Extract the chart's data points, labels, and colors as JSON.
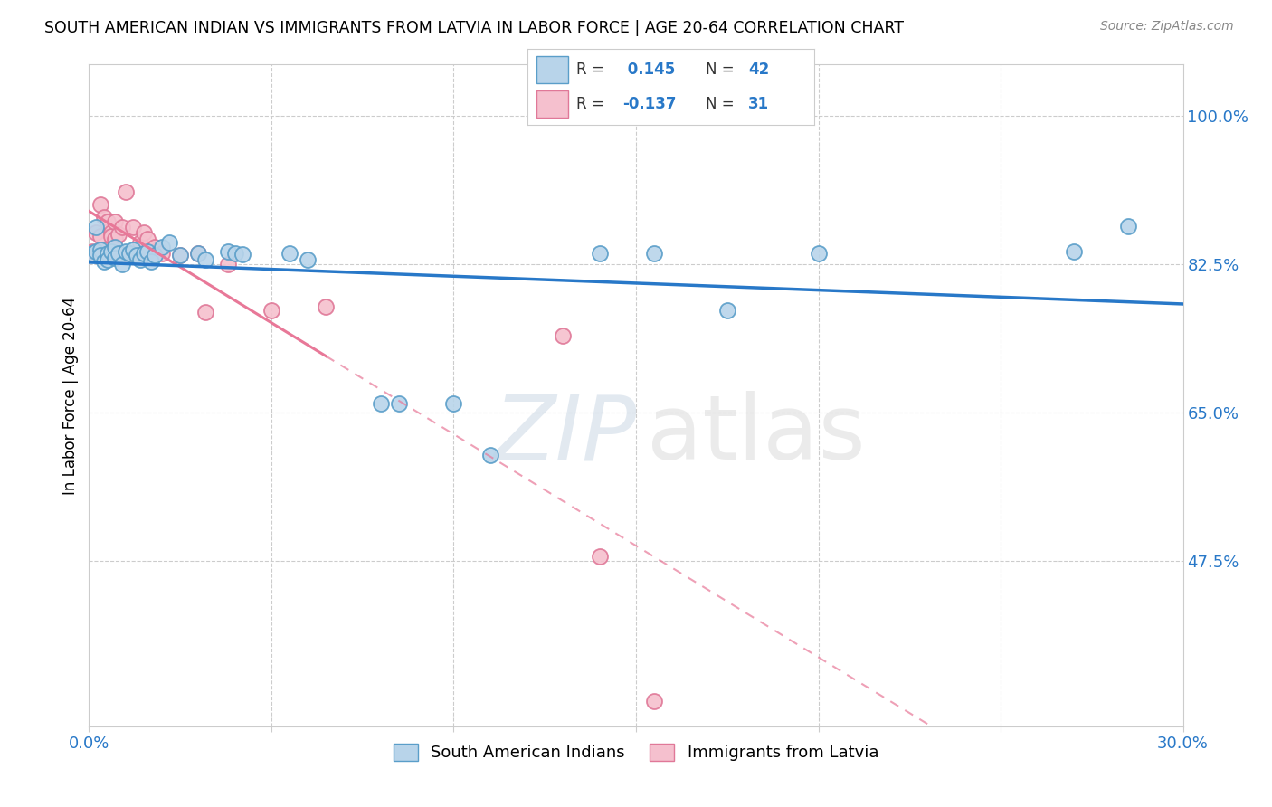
{
  "title": "SOUTH AMERICAN INDIAN VS IMMIGRANTS FROM LATVIA IN LABOR FORCE | AGE 20-64 CORRELATION CHART",
  "source": "Source: ZipAtlas.com",
  "ylabel": "In Labor Force | Age 20-64",
  "xlim": [
    0.0,
    0.3
  ],
  "ylim": [
    0.28,
    1.06
  ],
  "ytick_vals": [
    0.3,
    0.475,
    0.65,
    0.825,
    1.0
  ],
  "ytick_labels": [
    "",
    "47.5%",
    "65.0%",
    "82.5%",
    "100.0%"
  ],
  "xtick_positions": [
    0.0,
    0.05,
    0.1,
    0.15,
    0.2,
    0.25,
    0.3
  ],
  "xtick_labels": [
    "0.0%",
    "",
    "",
    "",
    "",
    "",
    "30.0%"
  ],
  "blue_R": 0.145,
  "blue_N": 42,
  "pink_R": -0.137,
  "pink_N": 31,
  "blue_color": "#b8d4ea",
  "blue_edge": "#5a9ec9",
  "pink_color": "#f5c0ce",
  "pink_edge": "#e07898",
  "blue_line_color": "#2878c8",
  "pink_line_color": "#e87898",
  "blue_x": [
    0.001,
    0.002,
    0.002,
    0.003,
    0.003,
    0.004,
    0.005,
    0.005,
    0.006,
    0.007,
    0.007,
    0.008,
    0.009,
    0.01,
    0.011,
    0.012,
    0.013,
    0.014,
    0.015,
    0.016,
    0.017,
    0.018,
    0.02,
    0.022,
    0.025,
    0.03,
    0.032,
    0.038,
    0.04,
    0.042,
    0.055,
    0.06,
    0.08,
    0.085,
    0.1,
    0.11,
    0.14,
    0.155,
    0.175,
    0.2,
    0.27,
    0.285
  ],
  "blue_y": [
    0.838,
    0.84,
    0.868,
    0.842,
    0.835,
    0.828,
    0.838,
    0.83,
    0.84,
    0.845,
    0.832,
    0.838,
    0.825,
    0.84,
    0.838,
    0.842,
    0.835,
    0.83,
    0.838,
    0.84,
    0.828,
    0.835,
    0.845,
    0.85,
    0.835,
    0.838,
    0.83,
    0.84,
    0.838,
    0.836,
    0.838,
    0.83,
    0.66,
    0.66,
    0.66,
    0.6,
    0.838,
    0.838,
    0.77,
    0.838,
    0.84,
    0.87
  ],
  "pink_x": [
    0.001,
    0.002,
    0.002,
    0.003,
    0.003,
    0.004,
    0.004,
    0.005,
    0.006,
    0.006,
    0.007,
    0.007,
    0.008,
    0.009,
    0.01,
    0.011,
    0.012,
    0.014,
    0.015,
    0.016,
    0.018,
    0.02,
    0.025,
    0.03,
    0.038,
    0.05,
    0.13,
    0.14,
    0.155,
    0.032,
    0.065
  ],
  "pink_y": [
    0.84,
    0.862,
    0.838,
    0.895,
    0.858,
    0.88,
    0.842,
    0.875,
    0.862,
    0.858,
    0.875,
    0.855,
    0.86,
    0.868,
    0.91,
    0.835,
    0.868,
    0.85,
    0.862,
    0.855,
    0.845,
    0.838,
    0.835,
    0.838,
    0.825,
    0.77,
    0.74,
    0.48,
    0.31,
    0.768,
    0.775
  ]
}
